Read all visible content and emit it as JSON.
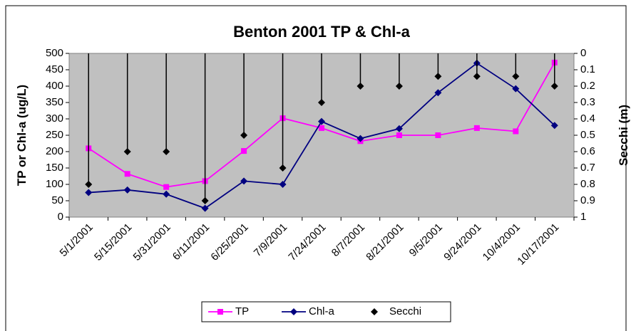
{
  "chart_data": {
    "type": "line",
    "title": "Benton 2001 TP & Chl-a",
    "y_label": "TP or Chl-a (ug/L)",
    "y2_label": "Secchi (m)",
    "categories": [
      "5/1/2001",
      "5/15/2001",
      "5/31/2001",
      "6/11/2001",
      "6/25/2001",
      "7/9/2001",
      "7/24/2001",
      "8/7/2001",
      "8/21/2001",
      "9/5/2001",
      "9/24/2001",
      "10/4/2001",
      "10/17/2001"
    ],
    "series": [
      {
        "name": "TP",
        "color": "#ff00ff",
        "marker": "square",
        "values": [
          210,
          132,
          92,
          110,
          202,
          302,
          272,
          232,
          250,
          250,
          272,
          262,
          472
        ]
      },
      {
        "name": "Chl-a",
        "color": "#000080",
        "marker": "diamond",
        "values": [
          75,
          83,
          70,
          27,
          110,
          100,
          292,
          240,
          270,
          380,
          470,
          392,
          280
        ]
      },
      {
        "name": "Secchi",
        "color": "#000000",
        "marker": "diamond",
        "axis": "y2",
        "line": false,
        "values": [
          0.8,
          0.6,
          0.6,
          0.9,
          0.5,
          0.7,
          0.3,
          0.2,
          0.2,
          0.14,
          0.14,
          0.14,
          0.2
        ]
      }
    ],
    "ylim": [
      0,
      500
    ],
    "yticks": [
      0,
      50,
      100,
      150,
      200,
      250,
      300,
      350,
      400,
      450,
      500
    ],
    "y2lim": [
      1,
      0
    ],
    "y2ticks": [
      0,
      0.1,
      0.2,
      0.3,
      0.4,
      0.5,
      0.6,
      0.7,
      0.8,
      0.9,
      1
    ],
    "legend": "bottom"
  }
}
